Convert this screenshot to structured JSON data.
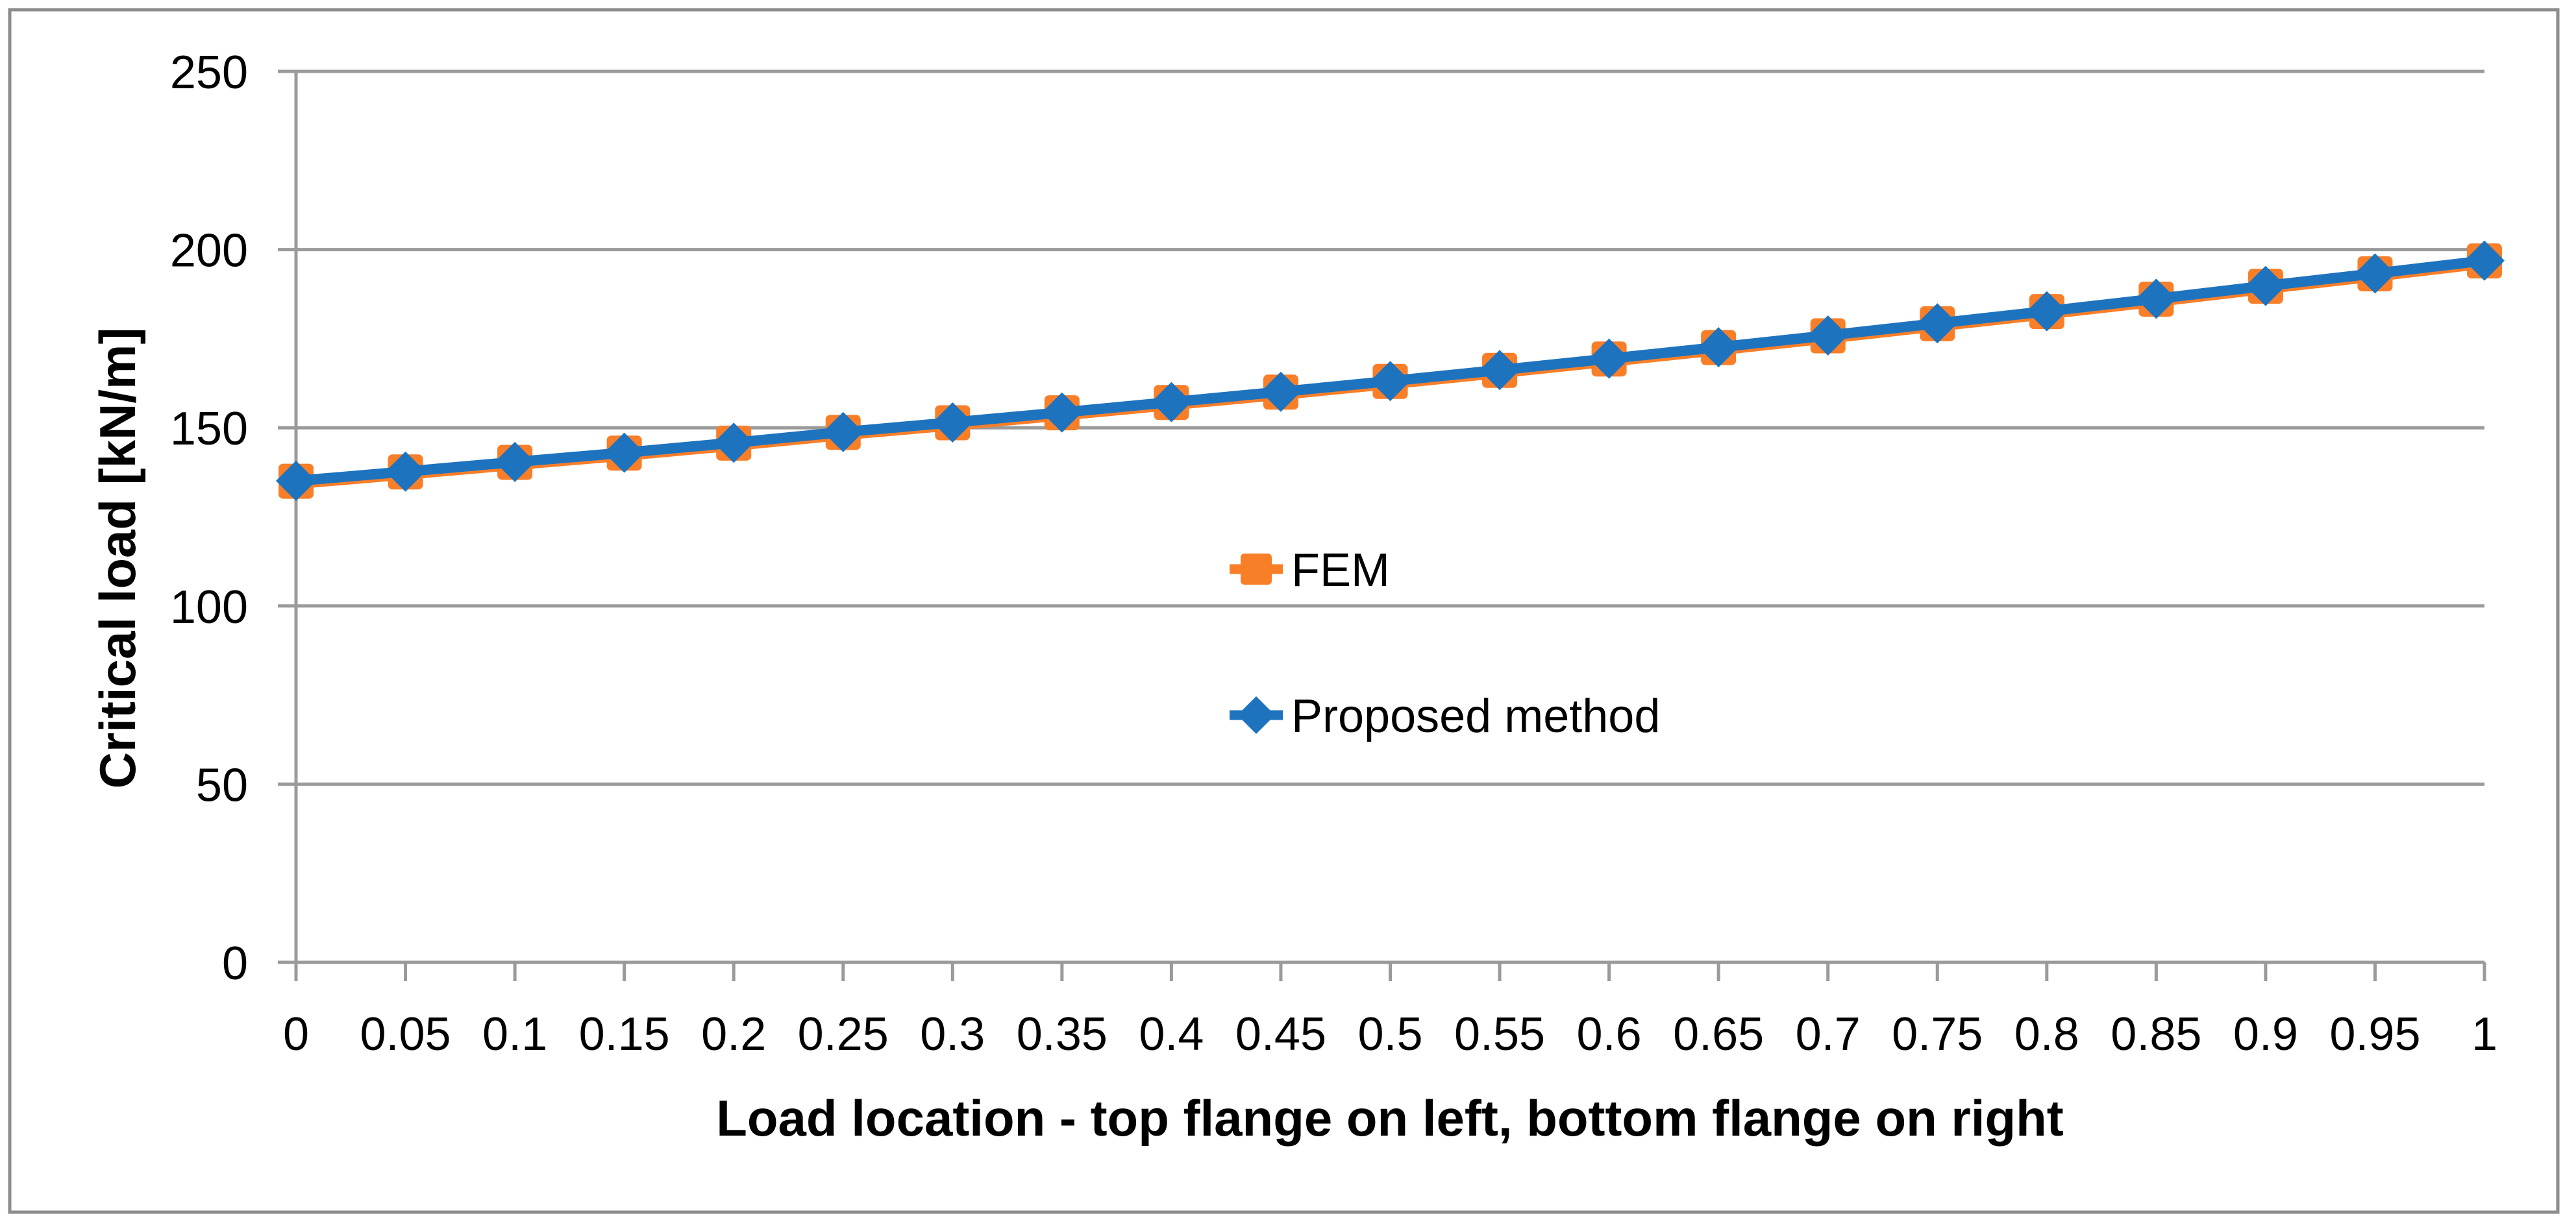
{
  "figure": {
    "background": "#FFFFFF",
    "border_color": "#8C8C8C"
  },
  "chart_data": {
    "type": "line",
    "title": "",
    "xlabel": "Load location - top flange on left, bottom flange on right",
    "ylabel": "Critical load [kN/m]",
    "xlim": [
      0,
      1
    ],
    "ylim": [
      0,
      250
    ],
    "grid": "horizontal-major-on",
    "legend_position": "inside-center",
    "colors": {
      "gridline": "#9A9A9A",
      "axis": "#9A9A9A",
      "tick_text": "#000000"
    },
    "y_ticks": [
      0,
      50,
      100,
      150,
      200,
      250
    ],
    "x": [
      0,
      0.05,
      0.1,
      0.15,
      0.2,
      0.25,
      0.3,
      0.35,
      0.4,
      0.45,
      0.5,
      0.55,
      0.6,
      0.65,
      0.7,
      0.75,
      0.8,
      0.85,
      0.9,
      0.95,
      1
    ],
    "x_tick_labels": [
      "0",
      "0.05",
      "0.1",
      "0.15",
      "0.2",
      "0.25",
      "0.3",
      "0.35",
      "0.4",
      "0.45",
      "0.5",
      "0.55",
      "0.6",
      "0.65",
      "0.7",
      "0.75",
      "0.8",
      "0.85",
      "0.9",
      "0.95",
      "1"
    ],
    "series": [
      {
        "name": "FEM",
        "marker": "square",
        "color": "#F97E28",
        "values": [
          135.0,
          137.6,
          140.3,
          142.9,
          145.7,
          148.7,
          151.4,
          154.2,
          157.1,
          160.0,
          163.0,
          166.1,
          169.3,
          172.5,
          175.8,
          179.2,
          182.6,
          186.1,
          189.7,
          193.2,
          196.8
        ]
      },
      {
        "name": "Proposed method",
        "marker": "diamond",
        "color": "#1E73BE",
        "values": [
          135.1,
          137.7,
          140.4,
          143.0,
          145.8,
          148.8,
          151.5,
          154.3,
          157.2,
          160.1,
          163.1,
          166.2,
          169.4,
          172.6,
          175.9,
          179.3,
          182.7,
          186.2,
          189.8,
          193.3,
          196.9
        ]
      }
    ]
  }
}
